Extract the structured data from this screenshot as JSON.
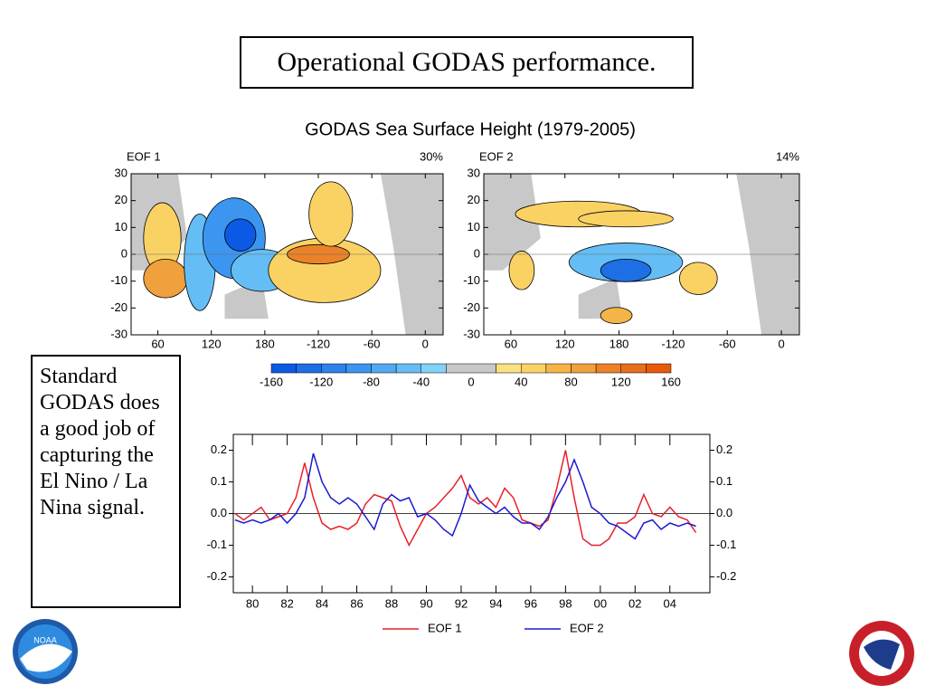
{
  "slide": {
    "title": "Operational GODAS performance.",
    "note": "Standard GODAS does a good job of capturing the El Nino / La Nina signal."
  },
  "figure": {
    "title": "GODAS Sea Surface Height (1979-2005)",
    "maps": [
      {
        "label": "EOF 1",
        "variance": "30%"
      },
      {
        "label": "EOF 2",
        "variance": "14%"
      }
    ],
    "map_axes": {
      "xlim": [
        30,
        380
      ],
      "ylim": [
        -30,
        30
      ],
      "xticks": [
        60,
        120,
        180,
        {
          "value": 240,
          "label": "-120"
        },
        {
          "value": 300,
          "label": "-60"
        },
        {
          "value": 360,
          "label": "0"
        }
      ],
      "yticks": [
        30,
        20,
        10,
        0,
        -10,
        -20,
        -30
      ]
    },
    "colorbar": {
      "bounds": [
        -160,
        -140,
        -120,
        -100,
        -80,
        -60,
        -40,
        -20,
        20,
        40,
        60,
        80,
        100,
        120,
        140,
        160
      ],
      "colors": [
        "#0a5ae6",
        "#1e6ee6",
        "#2d82eb",
        "#3c96f0",
        "#50aaf0",
        "#64bef5",
        "#82d2fa",
        "#c8c8c8",
        "#fae182",
        "#fad264",
        "#f5b446",
        "#f0a03c",
        "#eb8228",
        "#e66e1e",
        "#e65a0a"
      ],
      "ticks": [
        -160,
        -120,
        -80,
        -40,
        0,
        40,
        80,
        120,
        160
      ]
    }
  },
  "chart_data": {
    "type": "line",
    "x": [
      1979,
      1979.5,
      1980,
      1980.5,
      1981,
      1981.5,
      1982,
      1982.5,
      1983,
      1983.5,
      1984,
      1984.5,
      1985,
      1985.5,
      1986,
      1986.5,
      1987,
      1987.5,
      1988,
      1988.5,
      1989,
      1989.5,
      1990,
      1990.5,
      1991,
      1991.5,
      1992,
      1992.5,
      1993,
      1993.5,
      1994,
      1994.5,
      1995,
      1995.5,
      1996,
      1996.5,
      1997,
      1997.5,
      1998,
      1998.5,
      1999,
      1999.5,
      2000,
      2000.5,
      2001,
      2001.5,
      2002,
      2002.5,
      2003,
      2003.5,
      2004,
      2004.5,
      2005,
      2005.5
    ],
    "series": [
      {
        "name": "EOF 1",
        "color": "#e8202a",
        "values": [
          0.0,
          -0.02,
          0.0,
          0.02,
          -0.02,
          -0.01,
          0.0,
          0.05,
          0.16,
          0.05,
          -0.03,
          -0.05,
          -0.04,
          -0.05,
          -0.03,
          0.03,
          0.06,
          0.05,
          0.04,
          -0.04,
          -0.1,
          -0.05,
          0.0,
          0.02,
          0.05,
          0.08,
          0.12,
          0.05,
          0.03,
          0.05,
          0.02,
          0.08,
          0.05,
          -0.02,
          -0.03,
          -0.04,
          -0.02,
          0.08,
          0.2,
          0.05,
          -0.08,
          -0.1,
          -0.1,
          -0.08,
          -0.03,
          -0.03,
          -0.01,
          0.06,
          0.0,
          -0.01,
          0.02,
          -0.01,
          -0.02,
          -0.06
        ]
      },
      {
        "name": "EOF 2",
        "color": "#1a1ad0",
        "values": [
          -0.02,
          -0.03,
          -0.02,
          -0.03,
          -0.02,
          0.0,
          -0.03,
          0.0,
          0.05,
          0.19,
          0.1,
          0.05,
          0.03,
          0.05,
          0.03,
          -0.01,
          -0.05,
          0.03,
          0.06,
          0.04,
          0.05,
          -0.01,
          0.0,
          -0.02,
          -0.05,
          -0.07,
          0.0,
          0.09,
          0.04,
          0.02,
          0.0,
          0.02,
          -0.01,
          -0.03,
          -0.03,
          -0.05,
          -0.01,
          0.05,
          0.1,
          0.17,
          0.1,
          0.02,
          0.0,
          -0.03,
          -0.04,
          -0.06,
          -0.08,
          -0.03,
          -0.02,
          -0.05,
          -0.03,
          -0.04,
          -0.03,
          -0.04
        ]
      }
    ],
    "xlim": [
      1978.9,
      2006.3
    ],
    "ylim": [
      -0.25,
      0.25
    ],
    "xticks": [
      {
        "value": 1980,
        "label": "80"
      },
      {
        "value": 1982,
        "label": "82"
      },
      {
        "value": 1984,
        "label": "84"
      },
      {
        "value": 1986,
        "label": "86"
      },
      {
        "value": 1988,
        "label": "88"
      },
      {
        "value": 1990,
        "label": "90"
      },
      {
        "value": 1992,
        "label": "92"
      },
      {
        "value": 1994,
        "label": "94"
      },
      {
        "value": 1996,
        "label": "96"
      },
      {
        "value": 1998,
        "label": "98"
      },
      {
        "value": 2000,
        "label": "00"
      },
      {
        "value": 2002,
        "label": "02"
      },
      {
        "value": 2004,
        "label": "04"
      }
    ],
    "yticks": [
      -0.2,
      -0.1,
      {
        "value": 0,
        "label": "0.0"
      },
      0.1,
      0.2
    ],
    "y2lim": [
      -0.25,
      0.25
    ],
    "y2ticks": [
      -0.2,
      -0.1,
      {
        "value": 0,
        "label": "0.0"
      },
      0.1,
      0.2
    ],
    "hline": 0
  }
}
